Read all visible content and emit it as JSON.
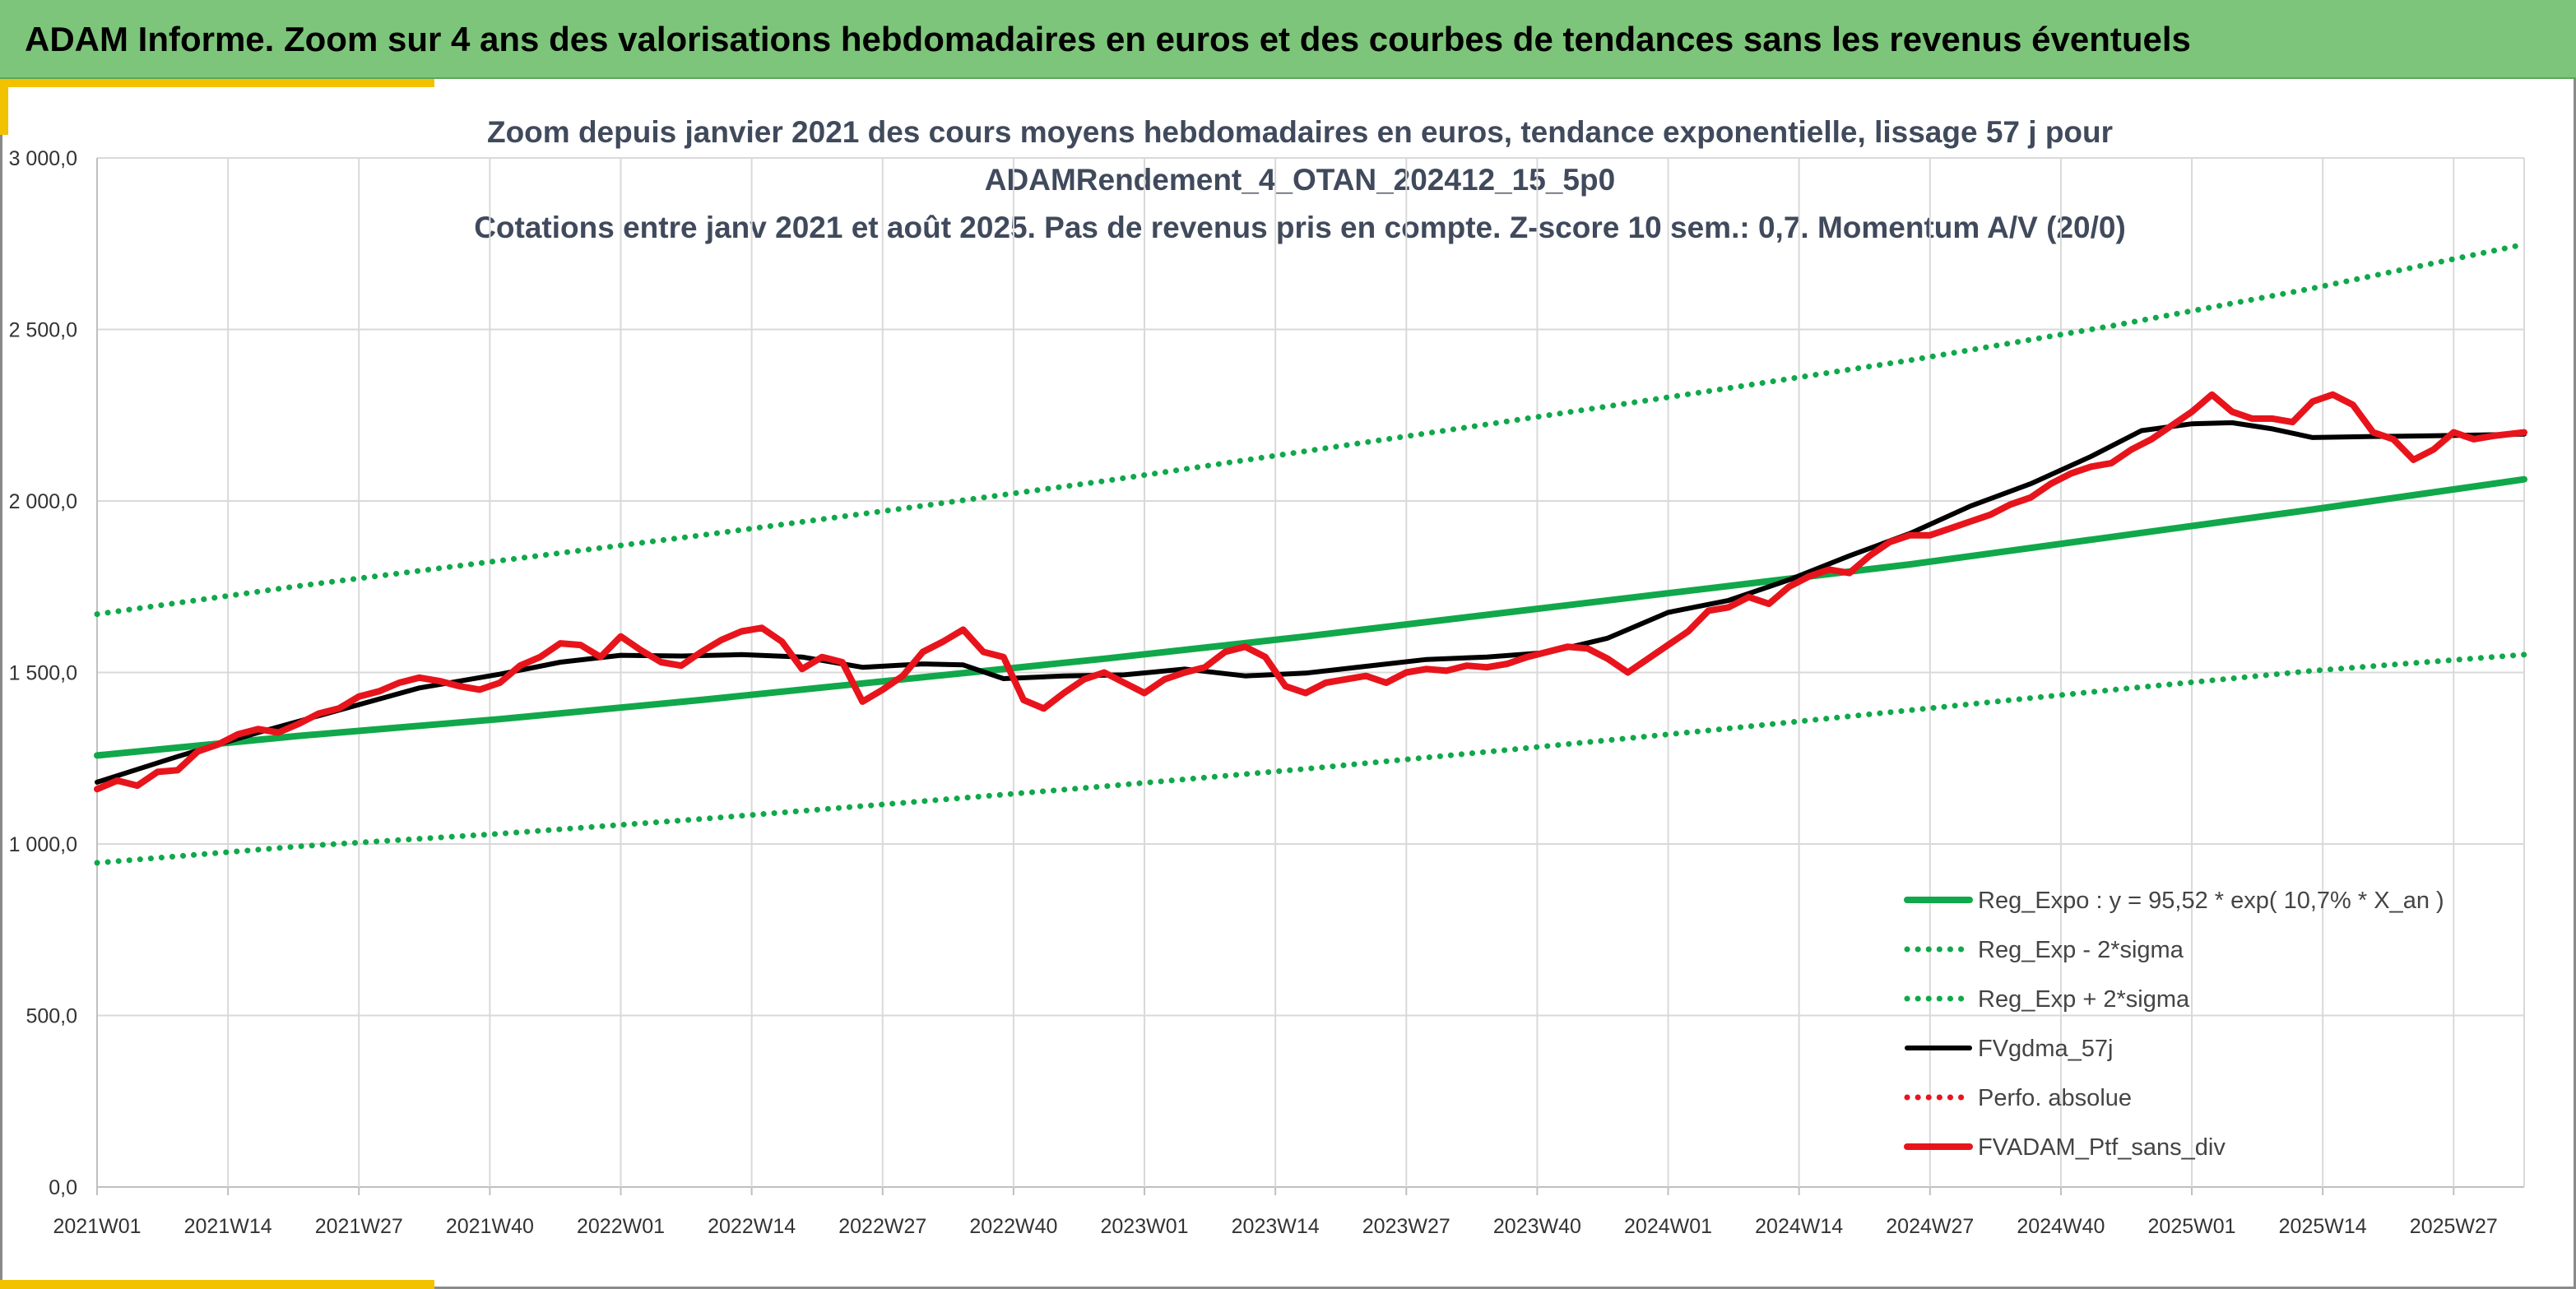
{
  "header": {
    "title": "ADAM Informe. Zoom sur 4 ans des valorisations hebdomadaires en euros et des courbes de tendances sans les revenus éventuels"
  },
  "colors": {
    "banner": "#7dc57a",
    "accent": "#f2c200",
    "trend": "#10a84a",
    "moving_average": "#000000",
    "portfolio": "#e8141c"
  },
  "chart_data": {
    "type": "line",
    "title": [
      "Zoom depuis janvier 2021 des cours moyens hebdomadaires en euros, tendance exponentielle, lissage 57 j pour",
      "ADAMRendement_4_OTAN_202412_15_5p0",
      "Cotations entre janv 2021 et août 2025. Pas de revenus pris en compte. Z-score 10 sem.: 0,7. Momentum A/V (20/0)"
    ],
    "xlabel": "",
    "ylabel": "",
    "ylim": [
      0,
      3000
    ],
    "yticks": [
      0,
      500,
      1000,
      1500,
      2000,
      2500,
      3000
    ],
    "ytick_labels": [
      "0,0",
      "500,0",
      "1 000,0",
      "1 500,0",
      "2 000,0",
      "2 500,0",
      "3 000,0"
    ],
    "xlim": [
      0,
      241
    ],
    "xticks": [
      0,
      13,
      26,
      39,
      52,
      65,
      78,
      91,
      104,
      117,
      130,
      143,
      156,
      169,
      182,
      195,
      208,
      221,
      234
    ],
    "xtick_labels": [
      "2021W01",
      "2021W14",
      "2021W27",
      "2021W40",
      "2022W01",
      "2022W14",
      "2022W27",
      "2022W40",
      "2023W01",
      "2023W14",
      "2023W27",
      "2023W40",
      "2024W01",
      "2024W14",
      "2024W27",
      "2024W40",
      "2025W01",
      "2025W14",
      "2025W27"
    ],
    "grid": true,
    "legend_position": "bottom-right",
    "series": [
      {
        "name": "Reg_Expo : y = 95,52 * exp( 10,7% *  X_an )",
        "style": "solid-thick",
        "color": "#10a84a",
        "x": [
          0,
          20,
          40,
          60,
          80,
          100,
          120,
          140,
          160,
          180,
          200,
          220,
          241
        ],
        "values": [
          1258,
          1315,
          1364,
          1420,
          1480,
          1540,
          1605,
          1675,
          1745,
          1815,
          1895,
          1975,
          2063
        ]
      },
      {
        "name": "Reg_Exp - 2*sigma",
        "style": "dotted",
        "color": "#10a84a",
        "x": [
          0,
          20,
          40,
          60,
          80,
          100,
          120,
          140,
          160,
          180,
          200,
          220,
          241
        ],
        "values": [
          945,
          993,
          1030,
          1073,
          1120,
          1168,
          1219,
          1274,
          1331,
          1390,
          1449,
          1505,
          1552
        ]
      },
      {
        "name": "Reg_Exp + 2*sigma",
        "style": "dotted",
        "color": "#10a84a",
        "x": [
          0,
          20,
          40,
          60,
          80,
          100,
          120,
          140,
          160,
          180,
          200,
          220,
          241
        ],
        "values": [
          1670,
          1752,
          1826,
          1900,
          1978,
          2058,
          2145,
          2232,
          2320,
          2410,
          2510,
          2620,
          2748
        ]
      },
      {
        "name": "FVgdma_57j",
        "style": "solid",
        "color": "#000000",
        "x": [
          0,
          8,
          16,
          24,
          32,
          40,
          46,
          52,
          58,
          64,
          70,
          76,
          82,
          86,
          90,
          96,
          102,
          108,
          114,
          120,
          126,
          132,
          138,
          144,
          150,
          156,
          162,
          168,
          174,
          180,
          186,
          192,
          198,
          203,
          208,
          212,
          216,
          220,
          226,
          232,
          238,
          241
        ],
        "values": [
          1180,
          1255,
          1325,
          1390,
          1455,
          1495,
          1530,
          1550,
          1548,
          1552,
          1545,
          1515,
          1525,
          1522,
          1482,
          1490,
          1493,
          1510,
          1490,
          1498,
          1518,
          1538,
          1545,
          1558,
          1600,
          1675,
          1710,
          1770,
          1840,
          1905,
          1985,
          2050,
          2130,
          2205,
          2225,
          2228,
          2210,
          2185,
          2188,
          2190,
          2193,
          2195
        ]
      },
      {
        "name": "Perfo. absolue",
        "style": "dotted",
        "color": "#e8141c",
        "x": [],
        "values": []
      },
      {
        "name": "FVADAM_Ptf_sans_div",
        "style": "solid-thick",
        "color": "#e8141c",
        "x": [
          0,
          2,
          4,
          6,
          8,
          10,
          12,
          14,
          16,
          18,
          20,
          22,
          24,
          26,
          28,
          30,
          32,
          34,
          36,
          38,
          40,
          42,
          44,
          46,
          48,
          50,
          52,
          54,
          56,
          58,
          60,
          62,
          64,
          66,
          68,
          70,
          72,
          74,
          76,
          78,
          80,
          82,
          84,
          86,
          88,
          90,
          92,
          94,
          96,
          98,
          100,
          102,
          104,
          106,
          108,
          110,
          112,
          114,
          116,
          118,
          120,
          122,
          124,
          126,
          128,
          130,
          132,
          134,
          136,
          138,
          140,
          142,
          144,
          146,
          148,
          150,
          152,
          154,
          156,
          158,
          160,
          162,
          164,
          166,
          168,
          170,
          172,
          174,
          176,
          178,
          180,
          182,
          184,
          186,
          188,
          190,
          192,
          194,
          196,
          198,
          200,
          202,
          204,
          206,
          208,
          210,
          212,
          214,
          216,
          218,
          220,
          222,
          224,
          226,
          228,
          230,
          232,
          234,
          236,
          238,
          241
        ],
        "values": [
          1160,
          1185,
          1170,
          1210,
          1215,
          1270,
          1290,
          1320,
          1335,
          1325,
          1350,
          1380,
          1395,
          1430,
          1445,
          1470,
          1485,
          1475,
          1460,
          1450,
          1470,
          1520,
          1545,
          1585,
          1580,
          1545,
          1605,
          1565,
          1530,
          1520,
          1560,
          1595,
          1620,
          1630,
          1590,
          1510,
          1545,
          1530,
          1415,
          1450,
          1490,
          1560,
          1590,
          1625,
          1560,
          1545,
          1420,
          1395,
          1440,
          1480,
          1500,
          1470,
          1440,
          1480,
          1500,
          1515,
          1560,
          1575,
          1545,
          1460,
          1440,
          1470,
          1480,
          1490,
          1470,
          1500,
          1510,
          1505,
          1520,
          1515,
          1525,
          1545,
          1560,
          1575,
          1570,
          1540,
          1500,
          1540,
          1580,
          1620,
          1680,
          1690,
          1720,
          1700,
          1750,
          1780,
          1800,
          1790,
          1840,
          1880,
          1900,
          1900,
          1920,
          1940,
          1960,
          1990,
          2010,
          2050,
          2080,
          2100,
          2110,
          2150,
          2180,
          2220,
          2260,
          2310,
          2260,
          2240,
          2240,
          2230,
          2290,
          2310,
          2280,
          2200,
          2180,
          2120,
          2150,
          2200,
          2180,
          2190,
          2200
        ]
      }
    ]
  }
}
